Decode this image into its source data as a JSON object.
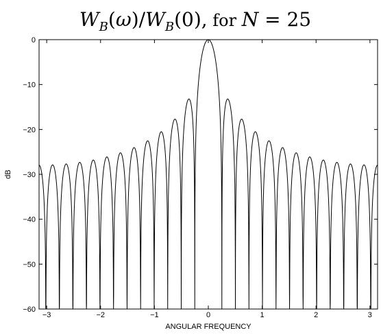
{
  "chart_data": {
    "type": "line",
    "title": {
      "lhs_main": "W",
      "lhs_sub": "B",
      "lhs_arg_open": "(",
      "lhs_arg": "ω",
      "lhs_arg_close": ")",
      "slash": "/",
      "rhs_main": "W",
      "rhs_sub": "B",
      "rhs_arg": "(0),",
      "for_text": " for ",
      "n_var": "N",
      "equals": " = 25"
    },
    "xlabel": "ANGULAR FREQUENCY",
    "ylabel": "dB",
    "xlim": [
      -3.14159,
      3.14159
    ],
    "ylim": [
      -60,
      0
    ],
    "x_ticks": [
      -3,
      -2,
      -1,
      0,
      1,
      2,
      3
    ],
    "y_ticks": [
      0,
      -10,
      -20,
      -30,
      -40,
      -50,
      -60
    ],
    "x_tick_labels": [
      "−3",
      "−2",
      "−1",
      "0",
      "1",
      "2",
      "3"
    ],
    "y_tick_labels": [
      "0",
      "−10",
      "−20",
      "−30",
      "−40",
      "−50",
      "−60"
    ],
    "grid": false,
    "series": [
      {
        "formula": "20*log10(|sin(25*w/2)/(25*sin(w/2))|)",
        "N": 25,
        "samples": 3000
      }
    ]
  }
}
